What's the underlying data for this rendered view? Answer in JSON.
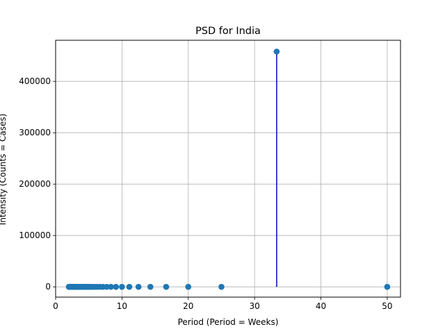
{
  "chart_data": {
    "type": "scatter",
    "title": "PSD for India",
    "xlabel": "Period (Period = Weeks)",
    "ylabel": "Intensity (Counts = Cases)",
    "xlim": [
      0,
      52
    ],
    "ylim": [
      -20000,
      480000
    ],
    "xticks": [
      0,
      10,
      20,
      30,
      40,
      50
    ],
    "yticks": [
      0,
      100000,
      200000,
      300000,
      400000
    ],
    "grid": true,
    "marker_color": "#1f77b4",
    "stem_color": "#0000cc",
    "stems": [
      {
        "x": 33.33,
        "y": 458000
      }
    ],
    "points": {
      "x": [
        50.0,
        33.33,
        25.0,
        20.0,
        16.67,
        14.29,
        12.5,
        11.11,
        10.0,
        9.09,
        8.33,
        7.69,
        7.14,
        6.67,
        6.25,
        5.88,
        5.56,
        5.26,
        5.0,
        4.76,
        4.55,
        4.35,
        4.17,
        4.0,
        3.85,
        3.7,
        3.57,
        3.45,
        3.33,
        3.23,
        3.13,
        3.03,
        2.94,
        2.86,
        2.78,
        2.7,
        2.63,
        2.56,
        2.5,
        2.44,
        2.38,
        2.33,
        2.27,
        2.22,
        2.17,
        2.13,
        2.08,
        2.04,
        2.0
      ],
      "y": [
        0,
        458000,
        0,
        0,
        0,
        0,
        0,
        0,
        0,
        0,
        0,
        0,
        0,
        0,
        0,
        0,
        0,
        0,
        0,
        0,
        0,
        0,
        0,
        0,
        0,
        0,
        0,
        0,
        0,
        0,
        0,
        0,
        0,
        0,
        0,
        0,
        0,
        0,
        0,
        0,
        0,
        0,
        0,
        0,
        0,
        0,
        0,
        0,
        0
      ]
    }
  }
}
